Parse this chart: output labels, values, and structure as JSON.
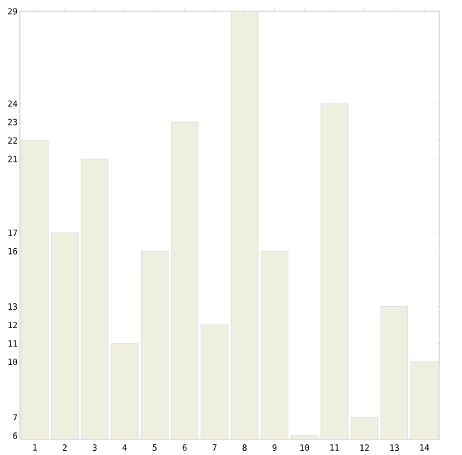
{
  "chart_data": {
    "type": "bar",
    "categories": [
      "1",
      "2",
      "3",
      "4",
      "5",
      "6",
      "7",
      "8",
      "9",
      "10",
      "11",
      "12",
      "13",
      "14"
    ],
    "values": [
      22,
      17,
      21,
      11,
      16,
      23,
      12,
      29,
      16,
      6,
      24,
      7,
      13,
      10
    ],
    "color": "#efefe0",
    "ylim": [
      5.8,
      29
    ],
    "yticks": [
      6,
      7,
      10,
      11,
      12,
      13,
      16,
      17,
      21,
      22,
      23,
      24,
      29
    ],
    "grid": false
  }
}
